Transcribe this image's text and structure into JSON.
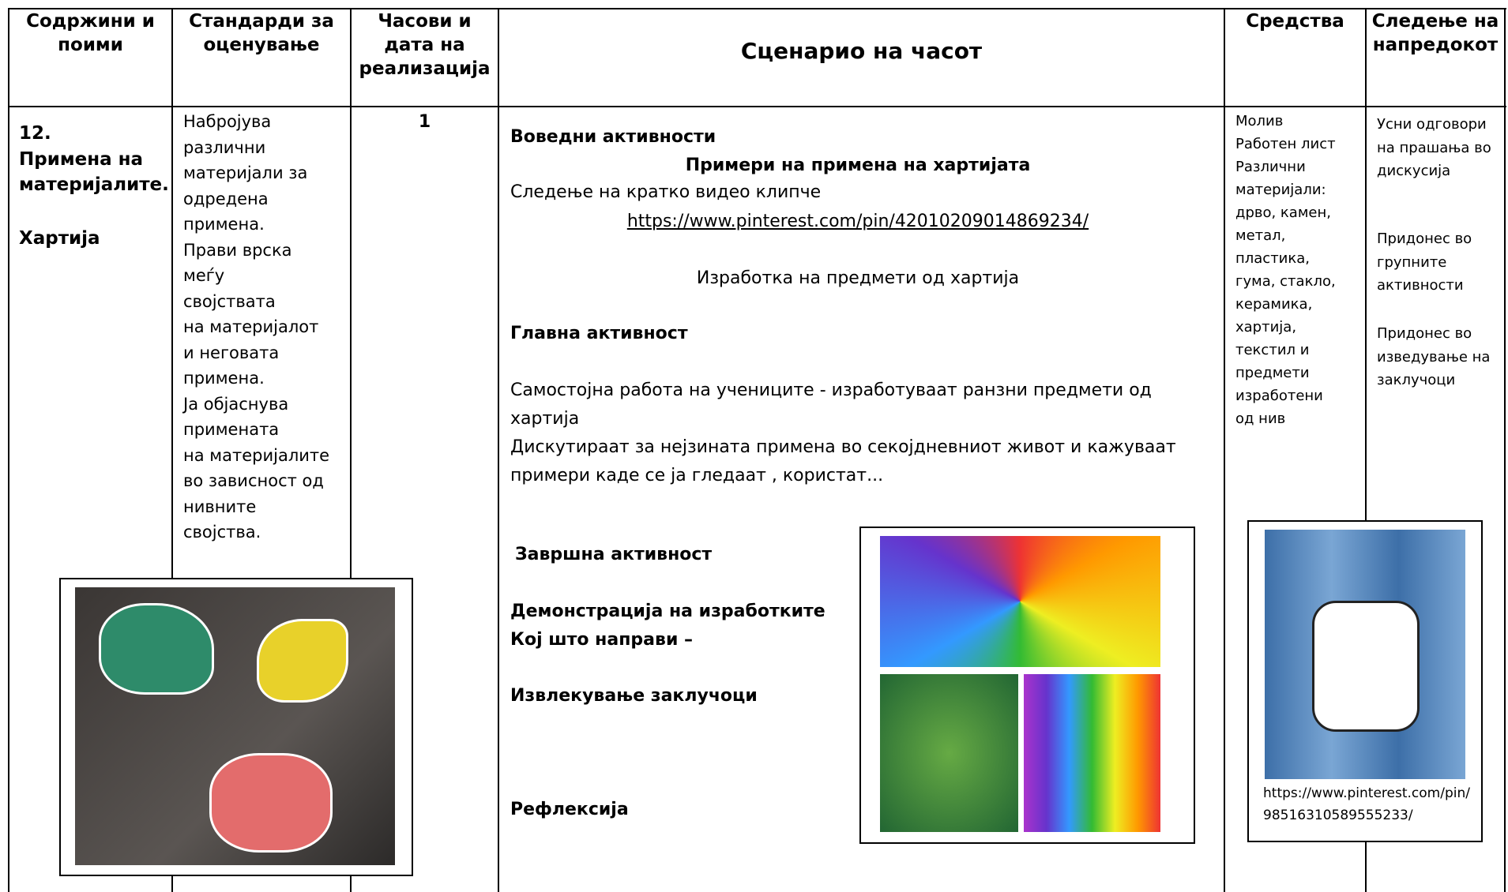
{
  "table": {
    "header": [
      "Содржини и поими",
      "Стандарди за оценување",
      "Часови и дата на реализација",
      "Сценарио на часот",
      "Средства",
      "Следење на напредокот"
    ],
    "row": {
      "content": [
        "12.",
        "Примена на материјалите.",
        "Хартија"
      ],
      "standards": [
        "Набројува",
        "различни",
        "материјали за",
        "одредена",
        "примена.",
        "Прави врска",
        "меѓу",
        "својствата",
        "на материјалот",
        "и неговата",
        "примена.",
        "Ја објаснува",
        "примената",
        "на материјалите",
        "во зависност од",
        "нивните",
        "својства."
      ],
      "hours": "1",
      "scenario": [
        "Воведни активности",
        "Примери на примена на хартијата",
        "Следење на кратко видео клипче",
        "https://www.pinterest.com/pin/42010209014869234/",
        "Изработка на предмети од хартија",
        "Главна активност",
        "Самостојна работа на учениците  - изработуваат ранзни предмети од хартија",
        "Дискутираат за нејзината примена во секојдневниот живот и кажуваат примери каде се ја гледаат , користат...",
        "Завршна активност",
        "Демонстрација на изработките",
        "Кој што направи –",
        "Извлекување заклучоци",
        "Рефлексија"
      ],
      "resources": [
        "Молив",
        "Работен лист",
        "Различни",
        "материјали:",
        "дрво, камен,",
        "метал,",
        "пластика,",
        "гума, стакло,",
        "керамика,",
        "хартија,",
        "текстил и",
        "предмети",
        "изработени",
        "од нив"
      ],
      "tracking": [
        "Усни одговори на прашања во дискусија",
        "Придонес во групните активности",
        "Придонес во изведување на заклучоци"
      ],
      "image_caption": "https://www.pinterest.com/pin/98516310589555233/"
    }
  }
}
